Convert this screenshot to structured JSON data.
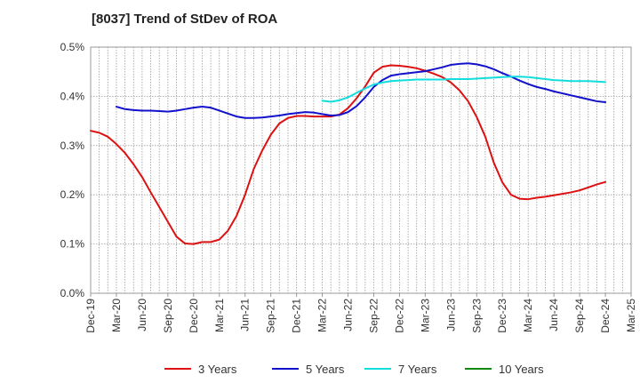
{
  "chart_data": {
    "type": "line",
    "title": "[8037]  Trend of StDev of ROA",
    "xlabel": "",
    "ylabel": "",
    "ylim": [
      0,
      0.5
    ],
    "y_ticks": [
      "0.0%",
      "0.1%",
      "0.2%",
      "0.3%",
      "0.4%",
      "0.5%"
    ],
    "y_tick_values": [
      0,
      0.1,
      0.2,
      0.3,
      0.4,
      0.5
    ],
    "x_ticks": [
      "Dec-19",
      "Mar-20",
      "Jun-20",
      "Sep-20",
      "Dec-20",
      "Mar-21",
      "Jun-21",
      "Sep-21",
      "Dec-21",
      "Mar-22",
      "Jun-22",
      "Sep-22",
      "Dec-22",
      "Mar-23",
      "Jun-23",
      "Sep-23",
      "Dec-23",
      "Mar-24",
      "Jun-24",
      "Sep-24",
      "Dec-24",
      "Mar-25"
    ],
    "x_unit": "month",
    "grid": true,
    "legend_position": "bottom",
    "series": [
      {
        "name": "3 Years",
        "color": "#dd1111",
        "x": [
          "Dec-19",
          "Jan-20",
          "Feb-20",
          "Mar-20",
          "Apr-20",
          "May-20",
          "Jun-20",
          "Jul-20",
          "Aug-20",
          "Sep-20",
          "Oct-20",
          "Nov-20",
          "Dec-20",
          "Jan-21",
          "Feb-21",
          "Mar-21",
          "Apr-21",
          "May-21",
          "Jun-21",
          "Jul-21",
          "Aug-21",
          "Sep-21",
          "Oct-21",
          "Nov-21",
          "Dec-21",
          "Jan-22",
          "Feb-22",
          "Mar-22",
          "Apr-22",
          "May-22",
          "Jun-22",
          "Jul-22",
          "Aug-22",
          "Sep-22",
          "Oct-22",
          "Nov-22",
          "Dec-22",
          "Jan-23",
          "Feb-23",
          "Mar-23",
          "Apr-23",
          "May-23",
          "Jun-23",
          "Jul-23",
          "Aug-23",
          "Sep-23",
          "Oct-23",
          "Nov-23",
          "Dec-23",
          "Jan-24",
          "Feb-24",
          "Mar-24",
          "Apr-24",
          "May-24",
          "Jun-24",
          "Jul-24",
          "Aug-24",
          "Sep-24",
          "Oct-24",
          "Nov-24",
          "Dec-24"
        ],
        "values": [
          0.33,
          0.326,
          0.318,
          0.303,
          0.285,
          0.262,
          0.236,
          0.205,
          0.175,
          0.145,
          0.115,
          0.101,
          0.1,
          0.104,
          0.104,
          0.109,
          0.127,
          0.157,
          0.2,
          0.252,
          0.29,
          0.322,
          0.345,
          0.356,
          0.36,
          0.36,
          0.359,
          0.359,
          0.359,
          0.363,
          0.376,
          0.396,
          0.42,
          0.448,
          0.46,
          0.463,
          0.462,
          0.46,
          0.457,
          0.452,
          0.446,
          0.439,
          0.428,
          0.412,
          0.39,
          0.358,
          0.318,
          0.265,
          0.225,
          0.2,
          0.192,
          0.191,
          0.194,
          0.196,
          0.199,
          0.202,
          0.205,
          0.209,
          0.215,
          0.221,
          0.226
        ]
      },
      {
        "name": "5 Years",
        "color": "#1111cc",
        "x": [
          "Mar-20",
          "Apr-20",
          "May-20",
          "Jun-20",
          "Jul-20",
          "Aug-20",
          "Sep-20",
          "Oct-20",
          "Nov-20",
          "Dec-20",
          "Jan-21",
          "Feb-21",
          "Mar-21",
          "Apr-21",
          "May-21",
          "Jun-21",
          "Jul-21",
          "Aug-21",
          "Sep-21",
          "Oct-21",
          "Nov-21",
          "Dec-21",
          "Jan-22",
          "Feb-22",
          "Mar-22",
          "Apr-22",
          "May-22",
          "Jun-22",
          "Jul-22",
          "Aug-22",
          "Sep-22",
          "Oct-22",
          "Nov-22",
          "Dec-22",
          "Jan-23",
          "Feb-23",
          "Mar-23",
          "Apr-23",
          "May-23",
          "Jun-23",
          "Jul-23",
          "Aug-23",
          "Sep-23",
          "Oct-23",
          "Nov-23",
          "Dec-23",
          "Jan-24",
          "Feb-24",
          "Mar-24",
          "Apr-24",
          "May-24",
          "Jun-24",
          "Jul-24",
          "Aug-24",
          "Sep-24",
          "Oct-24",
          "Nov-24",
          "Dec-24"
        ],
        "values": [
          0.379,
          0.374,
          0.372,
          0.371,
          0.371,
          0.37,
          0.369,
          0.371,
          0.374,
          0.377,
          0.379,
          0.377,
          0.371,
          0.365,
          0.359,
          0.356,
          0.356,
          0.357,
          0.359,
          0.361,
          0.364,
          0.366,
          0.368,
          0.367,
          0.364,
          0.361,
          0.362,
          0.368,
          0.38,
          0.398,
          0.419,
          0.433,
          0.442,
          0.445,
          0.447,
          0.449,
          0.451,
          0.455,
          0.459,
          0.464,
          0.466,
          0.467,
          0.465,
          0.461,
          0.455,
          0.447,
          0.44,
          0.432,
          0.425,
          0.419,
          0.415,
          0.41,
          0.406,
          0.402,
          0.398,
          0.394,
          0.39,
          0.388
        ]
      },
      {
        "name": "7 Years",
        "color": "#11dddd",
        "x": [
          "Mar-22",
          "Apr-22",
          "May-22",
          "Jun-22",
          "Jul-22",
          "Aug-22",
          "Sep-22",
          "Oct-22",
          "Nov-22",
          "Dec-22",
          "Jan-23",
          "Feb-23",
          "Mar-23",
          "Apr-23",
          "May-23",
          "Jun-23",
          "Jul-23",
          "Aug-23",
          "Sep-23",
          "Oct-23",
          "Nov-23",
          "Dec-23",
          "Jan-24",
          "Feb-24",
          "Mar-24",
          "Apr-24",
          "May-24",
          "Jun-24",
          "Jul-24",
          "Aug-24",
          "Sep-24",
          "Oct-24",
          "Nov-24",
          "Dec-24"
        ],
        "values": [
          0.391,
          0.389,
          0.392,
          0.398,
          0.407,
          0.416,
          0.424,
          0.428,
          0.431,
          0.432,
          0.433,
          0.434,
          0.434,
          0.434,
          0.434,
          0.435,
          0.435,
          0.435,
          0.436,
          0.437,
          0.438,
          0.439,
          0.44,
          0.44,
          0.439,
          0.437,
          0.435,
          0.433,
          0.432,
          0.431,
          0.431,
          0.431,
          0.43,
          0.429
        ]
      },
      {
        "name": "10 Years",
        "color": "#118811",
        "x": [],
        "values": []
      }
    ]
  }
}
